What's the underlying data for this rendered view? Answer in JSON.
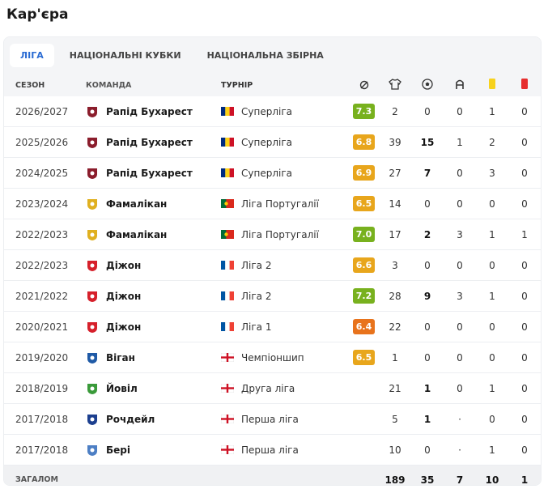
{
  "header": {
    "title": "Кар'єра"
  },
  "tabs": [
    "ЛІГА",
    "НАЦІОНАЛЬНІ КУБКИ",
    "НАЦІОНАЛЬНА ЗБІРНА"
  ],
  "table": {
    "columns": [
      "СЕЗОН",
      "КОМАНДА",
      "ТУРНІР"
    ],
    "rows": [
      {
        "season": "2026/2027",
        "team": "Рапід Бухарест",
        "tournament": "Суперліга",
        "rating": "7.3",
        "apps": 2,
        "goals": 0,
        "assists": 0,
        "yellow": 1,
        "red": 0
      },
      {
        "season": "2025/2026",
        "team": "Рапід Бухарест",
        "tournament": "Суперліга",
        "rating": "6.8",
        "apps": 39,
        "goals": 15,
        "assists": 1,
        "yellow": 2,
        "red": 0
      },
      {
        "season": "2024/2025",
        "team": "Рапід Бухарест",
        "tournament": "Суперліга",
        "rating": "6.9",
        "apps": 27,
        "goals": 7,
        "assists": 0,
        "yellow": 3,
        "red": 0
      },
      {
        "season": "2023/2024",
        "team": "Фамалікан",
        "tournament": "Ліга Португалії",
        "rating": "6.5",
        "apps": 14,
        "goals": 0,
        "assists": 0,
        "yellow": 0,
        "red": 0
      },
      {
        "season": "2022/2023",
        "team": "Фамалікан",
        "tournament": "Ліга Португалії",
        "rating": "7.0",
        "apps": 17,
        "goals": 2,
        "assists": 3,
        "yellow": 1,
        "red": 1
      },
      {
        "season": "2022/2023",
        "team": "Діжон",
        "tournament": "Ліга 2",
        "rating": "6.6",
        "apps": 3,
        "goals": 0,
        "assists": 0,
        "yellow": 0,
        "red": 0
      },
      {
        "season": "2021/2022",
        "team": "Діжон",
        "tournament": "Ліга 2",
        "rating": "7.2",
        "apps": 28,
        "goals": 9,
        "assists": 3,
        "yellow": 1,
        "red": 0
      },
      {
        "season": "2020/2021",
        "team": "Діжон",
        "tournament": "Ліга 1",
        "rating": "6.4",
        "apps": 22,
        "goals": 0,
        "assists": 0,
        "yellow": 0,
        "red": 0
      },
      {
        "season": "2019/2020",
        "team": "Віган",
        "tournament": "Чемпіоншип",
        "rating": "6.5",
        "apps": 1,
        "goals": 0,
        "assists": 0,
        "yellow": 0,
        "red": 0
      },
      {
        "season": "2018/2019",
        "team": "Йовіл",
        "tournament": "Друга ліга",
        "rating": null,
        "apps": 21,
        "goals": 1,
        "assists": 0,
        "yellow": 1,
        "red": 0
      },
      {
        "season": "2017/2018",
        "team": "Рочдейл",
        "tournament": "Перша ліга",
        "rating": null,
        "apps": 5,
        "goals": 1,
        "assists": "·",
        "yellow": 0,
        "red": 0
      },
      {
        "season": "2017/2018",
        "team": "Бері",
        "tournament": "Перша ліга",
        "rating": null,
        "apps": 10,
        "goals": 0,
        "assists": "·",
        "yellow": 1,
        "red": 0
      }
    ],
    "total": {
      "label": "ЗАГАЛОМ",
      "apps": 189,
      "goals": 35,
      "assists": 7,
      "yellow": 10,
      "red": 1
    }
  }
}
